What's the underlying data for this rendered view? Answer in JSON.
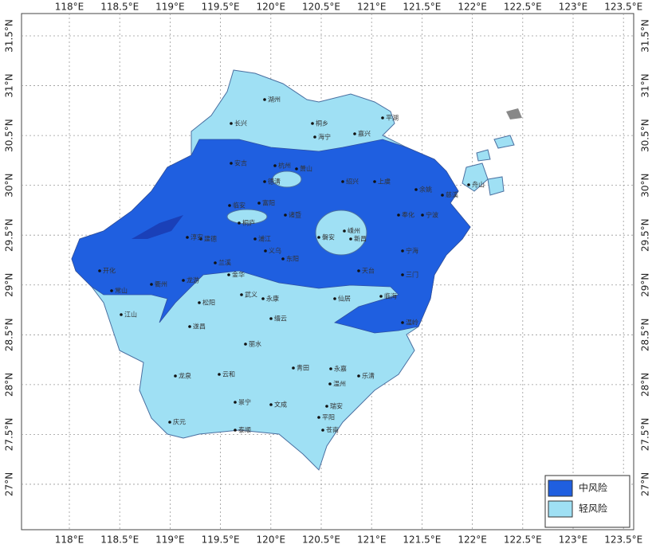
{
  "map": {
    "x_ticks": [
      {
        "value": 118,
        "label": "118°E"
      },
      {
        "value": 118.5,
        "label": "118.5°E"
      },
      {
        "value": 119,
        "label": "119°E"
      },
      {
        "value": 119.5,
        "label": "119.5°E"
      },
      {
        "value": 120,
        "label": "120°E"
      },
      {
        "value": 120.5,
        "label": "120.5°E"
      },
      {
        "value": 121,
        "label": "121°E"
      },
      {
        "value": 121.5,
        "label": "121.5°E"
      },
      {
        "value": 122,
        "label": "122°E"
      },
      {
        "value": 122.5,
        "label": "122.5°E"
      },
      {
        "value": 123,
        "label": "123°E"
      },
      {
        "value": 123.5,
        "label": "123.5°E"
      }
    ],
    "y_ticks": [
      {
        "value": 31.5,
        "label": "31.5°N"
      },
      {
        "value": 31,
        "label": "31°N"
      },
      {
        "value": 30.5,
        "label": "30.5°N"
      },
      {
        "value": 30,
        "label": "30°N"
      },
      {
        "value": 29.5,
        "label": "29.5°N"
      },
      {
        "value": 29,
        "label": "29°N"
      },
      {
        "value": 28.5,
        "label": "28.5°N"
      },
      {
        "value": 28,
        "label": "28°N"
      },
      {
        "value": 27.5,
        "label": "27.5°N"
      },
      {
        "value": 27,
        "label": "27°N"
      }
    ],
    "xlim": [
      117.5,
      123.6
    ],
    "ylim": [
      26.6,
      31.75
    ],
    "legend": [
      {
        "label": "中风险",
        "color": "#1f5fe0"
      },
      {
        "label": "轻风险",
        "color": "#9fe0f4"
      }
    ],
    "cities": [
      "长兴",
      "湖州",
      "安吉",
      "德清",
      "嘉兴",
      "桐乡",
      "海宁",
      "平湖",
      "临安",
      "杭州",
      "萧山",
      "富阳",
      "绍兴",
      "上虞",
      "余姚",
      "慈溪",
      "宁波",
      "奉化",
      "舟山",
      "桐庐",
      "建德",
      "淳安",
      "诸暨",
      "嵊州",
      "新昌",
      "浦江",
      "义乌",
      "东阳",
      "兰溪",
      "金华",
      "开化",
      "常山",
      "衢州",
      "龙游",
      "江山",
      "武义",
      "永康",
      "磐安",
      "天台",
      "宁海",
      "三门",
      "仙居",
      "临海",
      "温岭",
      "遂昌",
      "松阳",
      "缙云",
      "丽水",
      "青田",
      "龙泉",
      "云和",
      "景宁",
      "庆元",
      "永嘉",
      "温州",
      "乐清",
      "瑞安",
      "文成",
      "泰顺",
      "平阳",
      "苍南"
    ]
  }
}
